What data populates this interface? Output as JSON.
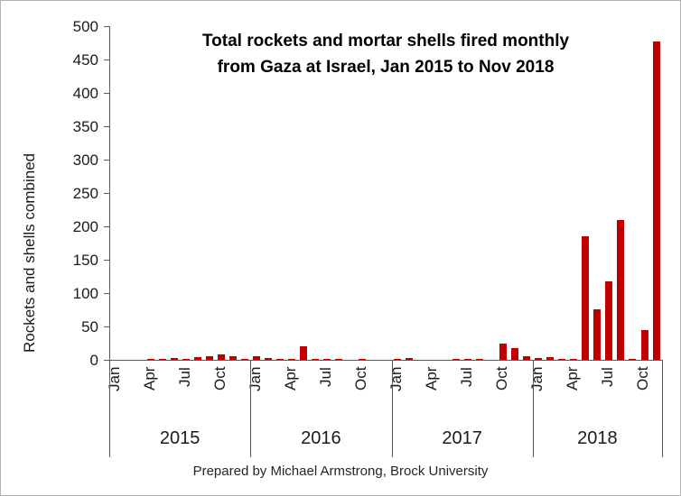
{
  "chart_data": {
    "type": "bar",
    "title": [
      "Total rockets and mortar shells fired monthly",
      "from Gaza at Israel, Jan 2015 to Nov 2018"
    ],
    "ylabel": "Rockets and shells combined",
    "ylim": [
      0,
      500
    ],
    "ytick_step": 50,
    "month_tick_labels": [
      "Jan",
      "Apr",
      "Jul",
      "Oct"
    ],
    "bar_color": "#c00000",
    "series": [
      {
        "year": "2015",
        "values": [
          0,
          0,
          0,
          1,
          2,
          3,
          2,
          4,
          5,
          8,
          6,
          2
        ]
      },
      {
        "year": "2016",
        "values": [
          6,
          3,
          2,
          1,
          21,
          1,
          2,
          1,
          0,
          2,
          0,
          0
        ]
      },
      {
        "year": "2017",
        "values": [
          2,
          3,
          0,
          0,
          0,
          1,
          2,
          1,
          0,
          25,
          18,
          5
        ]
      },
      {
        "year": "2018",
        "values": [
          3,
          4,
          1,
          1,
          185,
          76,
          117,
          210,
          2,
          45,
          477
        ]
      }
    ],
    "caption": "Prepared by Michael Armstrong, Brock University"
  }
}
